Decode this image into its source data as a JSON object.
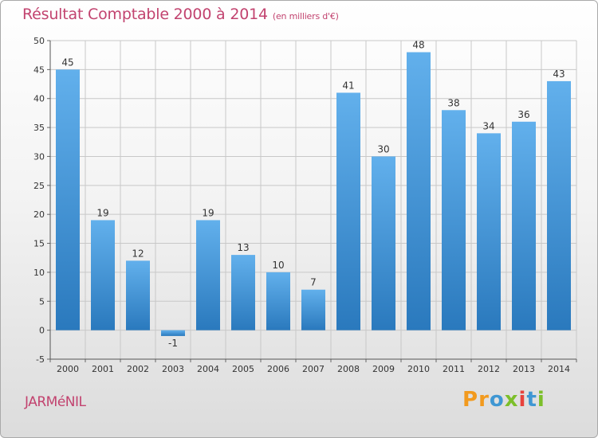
{
  "title": "Résultat Comptable 2000 à 2014",
  "subtitle": "(en milliers d'€)",
  "commune": "JARMéNIL",
  "logo": {
    "letters": [
      "P",
      "r",
      "o",
      "x",
      "i",
      "t",
      "i"
    ],
    "colors": [
      "#f29a1e",
      "#f29a1e",
      "#3f97d3",
      "#7cbf2a",
      "#e8423c",
      "#3f97d3",
      "#7cbf2a"
    ]
  },
  "chart_data": {
    "type": "bar",
    "categories": [
      "2000",
      "2001",
      "2002",
      "2003",
      "2004",
      "2005",
      "2006",
      "2007",
      "2008",
      "2009",
      "2010",
      "2011",
      "2012",
      "2013",
      "2014"
    ],
    "values": [
      45,
      19,
      12,
      -1,
      19,
      13,
      10,
      7,
      41,
      30,
      48,
      38,
      34,
      36,
      43
    ],
    "data_labels": [
      "45",
      "19",
      "12",
      "-1",
      "19",
      "13",
      "10",
      "7",
      "41",
      "30",
      "48",
      "38",
      "34",
      "36",
      "43"
    ],
    "ylim": [
      -5,
      50
    ],
    "yticks": [
      -5,
      0,
      5,
      10,
      15,
      20,
      25,
      30,
      35,
      40,
      45,
      50
    ],
    "grid": true,
    "bar_color_top": "#62b0ec",
    "bar_color_bottom": "#2a79bd"
  }
}
